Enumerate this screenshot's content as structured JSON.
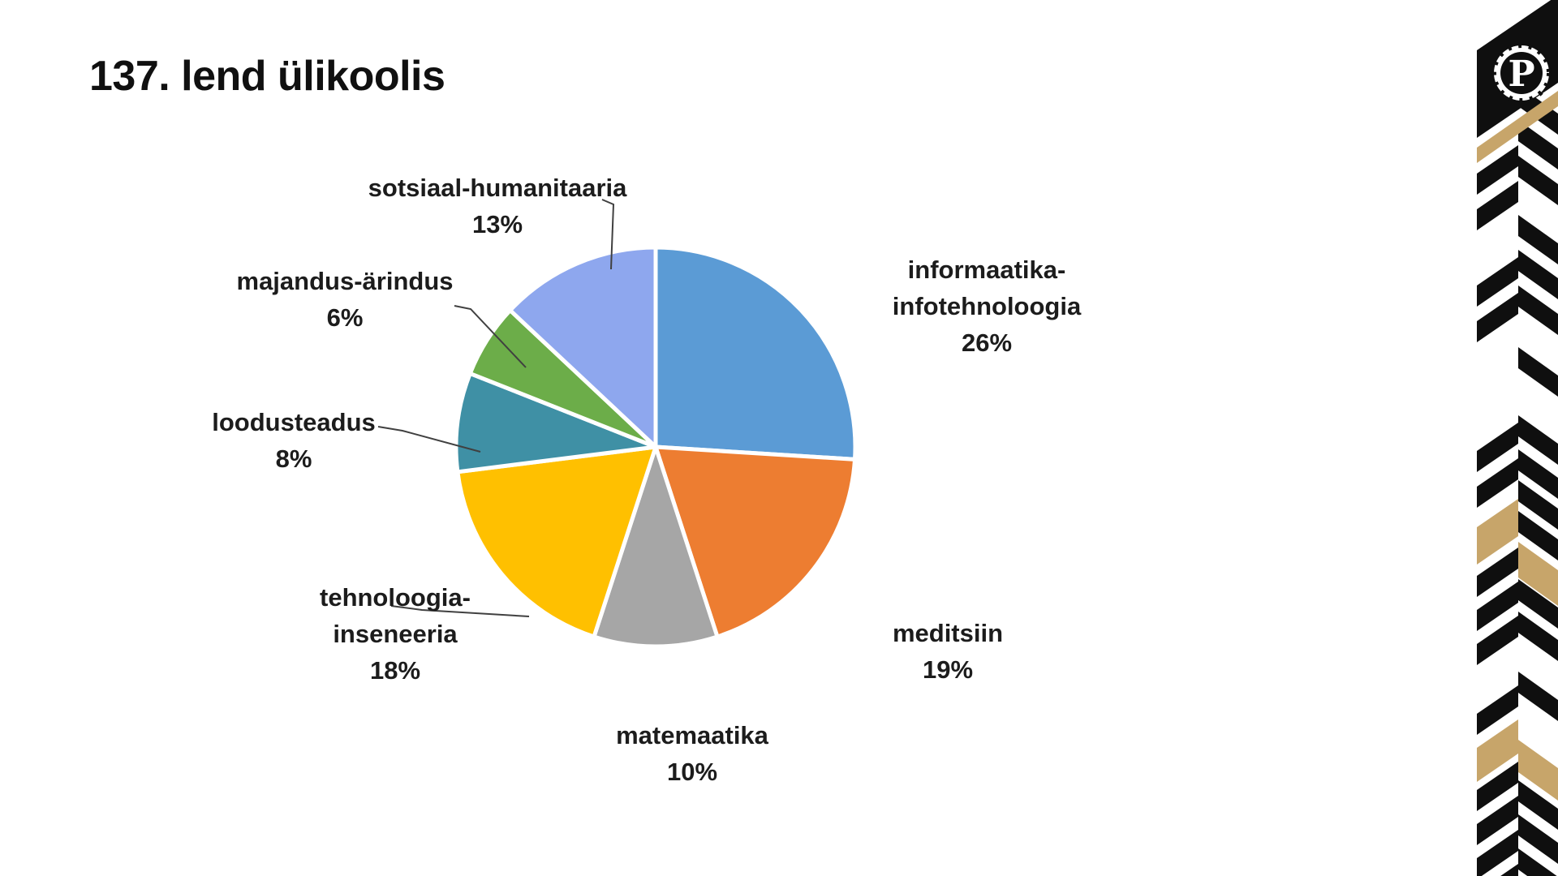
{
  "slide": {
    "title": "137. lend ülikoolis"
  },
  "chart_data": {
    "type": "pie",
    "title": "137. lend ülikoolis",
    "start_angle_deg": -90,
    "direction": "clockwise",
    "legend_position": "none",
    "labels_outside": true,
    "slices": [
      {
        "label": "informaatika-\ninfotehnoloogia",
        "value": 26,
        "pct_label": "26%",
        "color": "#5B9BD5"
      },
      {
        "label": "meditsiin",
        "value": 19,
        "pct_label": "19%",
        "color": "#ED7D31"
      },
      {
        "label": "matemaatika",
        "value": 10,
        "pct_label": "10%",
        "color": "#A6A6A6"
      },
      {
        "label": "tehnoloogia-\ninseneeria",
        "value": 18,
        "pct_label": "18%",
        "color": "#FFC000"
      },
      {
        "label": "loodusteadus",
        "value": 8,
        "pct_label": "8%",
        "color": "#3F90A5"
      },
      {
        "label": "majandus-ärindus",
        "value": 6,
        "pct_label": "6%",
        "color": "#6CAD49"
      },
      {
        "label": "sotsiaal-humanitaaria",
        "value": 13,
        "pct_label": "13%",
        "color": "#8EA7EE"
      }
    ]
  },
  "decor": {
    "logo_letter": "P",
    "colors": {
      "black": "#0f0f0f",
      "gold": "#C7A56A",
      "white": "#ffffff",
      "line": "#404040"
    }
  }
}
